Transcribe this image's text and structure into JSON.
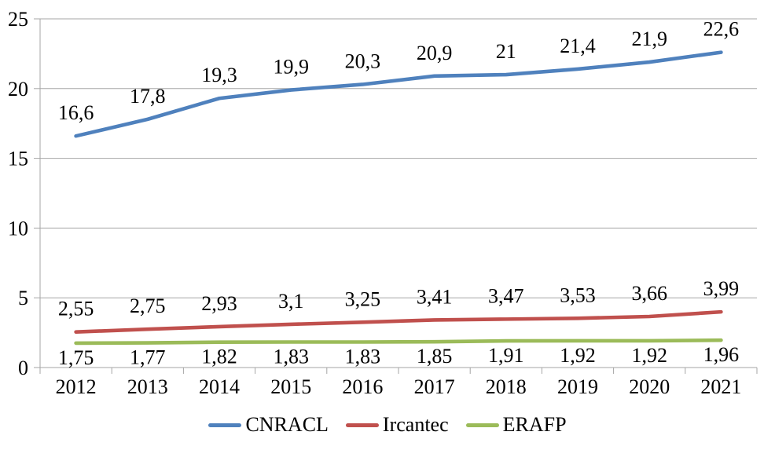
{
  "chart_data": {
    "type": "line",
    "title": "",
    "xlabel": "",
    "ylabel": "",
    "categories": [
      "2012",
      "2013",
      "2014",
      "2015",
      "2016",
      "2017",
      "2018",
      "2019",
      "2020",
      "2021"
    ],
    "series": [
      {
        "name": "CNRACL",
        "color": "#4F81BD",
        "values": [
          16.6,
          17.8,
          19.3,
          19.9,
          20.3,
          20.9,
          21,
          21.4,
          21.9,
          22.6
        ],
        "labels": [
          "16,6",
          "17,8",
          "19,3",
          "19,9",
          "20,3",
          "20,9",
          "21",
          "21,4",
          "21,9",
          "22,6"
        ],
        "label_position": "above"
      },
      {
        "name": "Ircantec",
        "color": "#C0504D",
        "values": [
          2.55,
          2.75,
          2.93,
          3.1,
          3.25,
          3.41,
          3.47,
          3.53,
          3.66,
          3.99
        ],
        "labels": [
          "2,55",
          "2,75",
          "2,93",
          "3,1",
          "3,25",
          "3,41",
          "3,47",
          "3,53",
          "3,66",
          "3,99"
        ],
        "label_position": "above"
      },
      {
        "name": "ERAFP",
        "color": "#9BBB59",
        "values": [
          1.75,
          1.77,
          1.82,
          1.83,
          1.83,
          1.85,
          1.91,
          1.92,
          1.92,
          1.96
        ],
        "labels": [
          "1,75",
          "1,77",
          "1,82",
          "1,83",
          "1,83",
          "1,85",
          "1,91",
          "1,92",
          "1,92",
          "1,96"
        ],
        "label_position": "below"
      }
    ],
    "ylim": [
      0,
      25
    ],
    "yticks": [
      0,
      5,
      10,
      15,
      20,
      25
    ],
    "ytick_labels": [
      "0",
      "5",
      "10",
      "15",
      "20",
      "25"
    ],
    "grid": true,
    "legend_position": "bottom",
    "grid_color": "#A6A6A6",
    "axis_color": "#A6A6A6",
    "text_color": "#000000",
    "background": "#FFFFFF"
  }
}
